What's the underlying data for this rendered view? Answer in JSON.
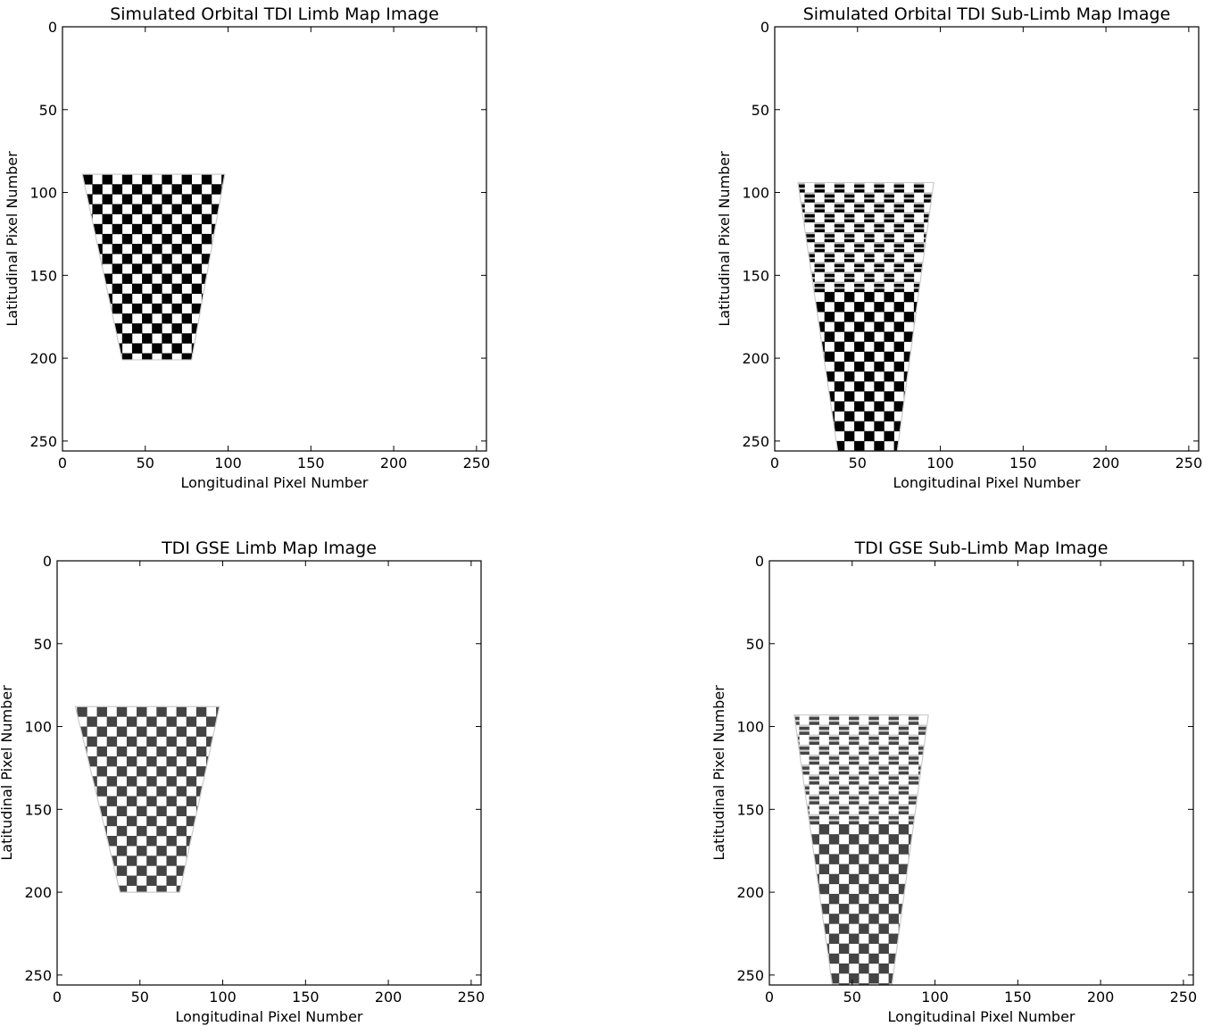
{
  "chart_data": [
    {
      "type": "heatmap",
      "title": "Simulated Orbital TDI Limb Map Image",
      "xlabel": "Longitudinal Pixel Number",
      "ylabel": "Latitudinal Pixel Number",
      "xlim": [
        0,
        256
      ],
      "ylim": [
        256,
        0
      ],
      "xticks": [
        "0",
        "50",
        "100",
        "150",
        "200",
        "250"
      ],
      "yticks": [
        "0",
        "50",
        "100",
        "150",
        "200",
        "250"
      ],
      "colormap": "gray",
      "checker_color": "#000000",
      "footprint": {
        "shape": "trapezoid",
        "top_y": 89,
        "bottom_y": 201,
        "top_x": [
          12,
          98
        ],
        "bottom_x": [
          36,
          78
        ],
        "checker_period_px": 12,
        "limb_band_y": null
      }
    },
    {
      "type": "heatmap",
      "title": "Simulated Orbital TDI Sub-Limb Map Image",
      "xlabel": "Longitudinal Pixel Number",
      "ylabel": "Latitudinal Pixel Number",
      "xlim": [
        0,
        256
      ],
      "ylim": [
        256,
        0
      ],
      "xticks": [
        "0",
        "50",
        "100",
        "150",
        "200",
        "250"
      ],
      "yticks": [
        "0",
        "50",
        "100",
        "150",
        "200",
        "250"
      ],
      "colormap": "gray",
      "checker_color": "#000000",
      "footprint": {
        "shape": "trapezoid",
        "top_y": 94,
        "bottom_y": 256,
        "top_x": [
          14,
          96
        ],
        "bottom_x": [
          38,
          74
        ],
        "checker_period_px": 12,
        "limb_band_y": [
          94,
          160
        ]
      }
    },
    {
      "type": "heatmap",
      "title": "TDI GSE Limb Map Image",
      "xlabel": "Longitudinal Pixel Number",
      "ylabel": "Latitudinal Pixel Number",
      "xlim": [
        0,
        256
      ],
      "ylim": [
        256,
        0
      ],
      "xticks": [
        "0",
        "50",
        "100",
        "150",
        "200",
        "250"
      ],
      "yticks": [
        "0",
        "50",
        "100",
        "150",
        "200",
        "250"
      ],
      "colormap": "gray",
      "checker_color": "#444444",
      "footprint": {
        "shape": "trapezoid",
        "top_y": 88,
        "bottom_y": 200,
        "top_x": [
          11,
          98
        ],
        "bottom_x": [
          38,
          74
        ],
        "checker_period_px": 12,
        "limb_band_y": null
      }
    },
    {
      "type": "heatmap",
      "title": "TDI GSE Sub-Limb Map Image",
      "xlabel": "Longitudinal Pixel Number",
      "ylabel": "Latitudinal Pixel Number",
      "xlim": [
        0,
        256
      ],
      "ylim": [
        256,
        0
      ],
      "xticks": [
        "0",
        "50",
        "100",
        "150",
        "200",
        "250"
      ],
      "yticks": [
        "0",
        "50",
        "100",
        "150",
        "200",
        "250"
      ],
      "colormap": "gray",
      "checker_color": "#444444",
      "footprint": {
        "shape": "trapezoid",
        "top_y": 93,
        "bottom_y": 256,
        "top_x": [
          15,
          96
        ],
        "bottom_x": [
          38,
          74
        ],
        "checker_period_px": 12,
        "limb_band_y": [
          93,
          158
        ]
      }
    }
  ]
}
